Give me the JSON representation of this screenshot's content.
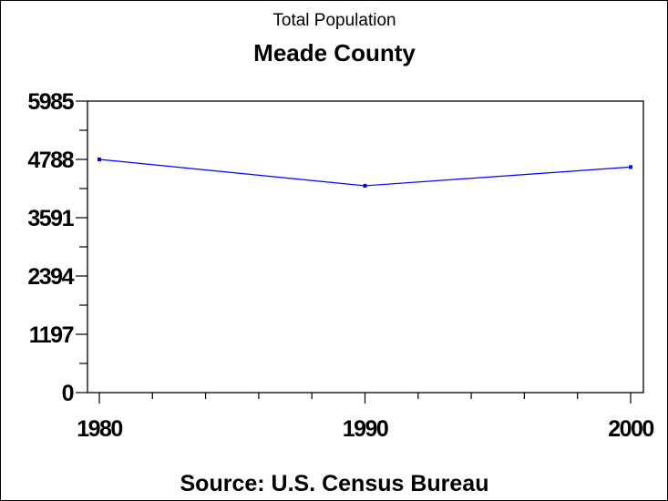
{
  "chart_data": {
    "type": "line",
    "title": "Total Population",
    "subtitle": "Meade County",
    "footnote": "Source: U.S. Census Bureau",
    "xlabel": "",
    "ylabel": "",
    "x": [
      1980,
      1990,
      2000
    ],
    "series": [
      {
        "values": [
          4788,
          4247,
          4631
        ],
        "color": "#0000ff"
      }
    ],
    "xlim": [
      1980,
      2000
    ],
    "ylim": [
      0,
      5985
    ],
    "xticks": [
      "1980",
      "1990",
      "2000"
    ],
    "yticks": [
      "0",
      "1197",
      "2394",
      "3591",
      "4788",
      "5985"
    ],
    "grid": false,
    "legend": "none"
  }
}
